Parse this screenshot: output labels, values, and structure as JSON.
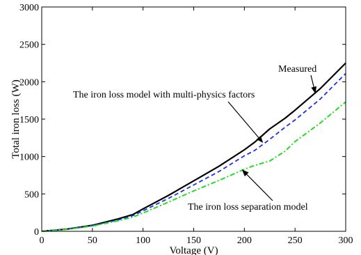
{
  "chart_data": {
    "type": "line",
    "xlabel": "Voltage  (V)",
    "ylabel": "Total iron loss  (W)",
    "xlim": [
      0,
      300
    ],
    "ylim": [
      0,
      3000
    ],
    "xticks": [
      0,
      50,
      100,
      150,
      200,
      250,
      300
    ],
    "yticks": [
      0,
      500,
      1000,
      1500,
      2000,
      2500,
      3000
    ],
    "grid": false,
    "legend": "none",
    "x": [
      0,
      25,
      50,
      75,
      90,
      100,
      125,
      150,
      175,
      200,
      210,
      225,
      240,
      250,
      275,
      300
    ],
    "series": [
      {
        "name": "Measured",
        "color": "#000000",
        "dash": "solid",
        "values": [
          0,
          30,
          80,
          165,
          225,
          300,
          480,
          675,
          870,
          1090,
          1190,
          1370,
          1510,
          1620,
          1910,
          2250
        ]
      },
      {
        "name": "The iron loss model with multi-physics factors",
        "color": "#1f2ee8",
        "dash": "dashed",
        "values": [
          0,
          28,
          75,
          150,
          210,
          275,
          440,
          620,
          800,
          1010,
          1080,
          1230,
          1390,
          1490,
          1770,
          2110
        ]
      },
      {
        "name": "The iron loss separation model",
        "color": "#22dd22",
        "dash": "dashdot",
        "values": [
          0,
          26,
          70,
          140,
          190,
          245,
          390,
          540,
          680,
          830,
          880,
          940,
          1070,
          1200,
          1450,
          1730
        ]
      }
    ],
    "annotations": [
      {
        "text": "Measured",
        "arrow_to": [
          270,
          1850
        ]
      },
      {
        "text": "The iron loss model with multi-physics factors",
        "arrow_to": [
          218,
          1190
        ]
      },
      {
        "text": "The iron loss separation model",
        "arrow_to": [
          198,
          820
        ]
      }
    ]
  }
}
